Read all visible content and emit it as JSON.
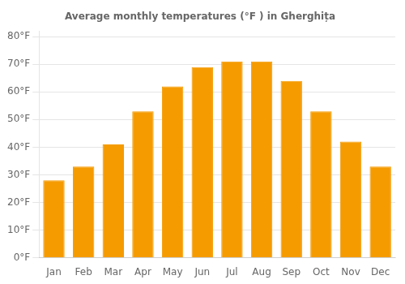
{
  "chart_data": {
    "type": "bar",
    "title": "Average monthly temperatures (°F ) in Gherghița",
    "categories": [
      "Jan",
      "Feb",
      "Mar",
      "Apr",
      "May",
      "Jun",
      "Jul",
      "Aug",
      "Sep",
      "Oct",
      "Nov",
      "Dec"
    ],
    "values": [
      28,
      33,
      41,
      53,
      62,
      69,
      71,
      71,
      64,
      53,
      42,
      33
    ],
    "color": "#F59B00",
    "ylim": [
      0,
      82
    ],
    "yticks": [
      {
        "value": 0,
        "label": "0°F"
      },
      {
        "value": 10,
        "label": "10°F"
      },
      {
        "value": 20,
        "label": "20°F"
      },
      {
        "value": 30,
        "label": "30°F"
      },
      {
        "value": 40,
        "label": "40°F"
      },
      {
        "value": 50,
        "label": "50°F"
      },
      {
        "value": 60,
        "label": "60°F"
      },
      {
        "value": 70,
        "label": "70°F"
      },
      {
        "value": 80,
        "label": "80°F"
      }
    ],
    "grid": true
  }
}
